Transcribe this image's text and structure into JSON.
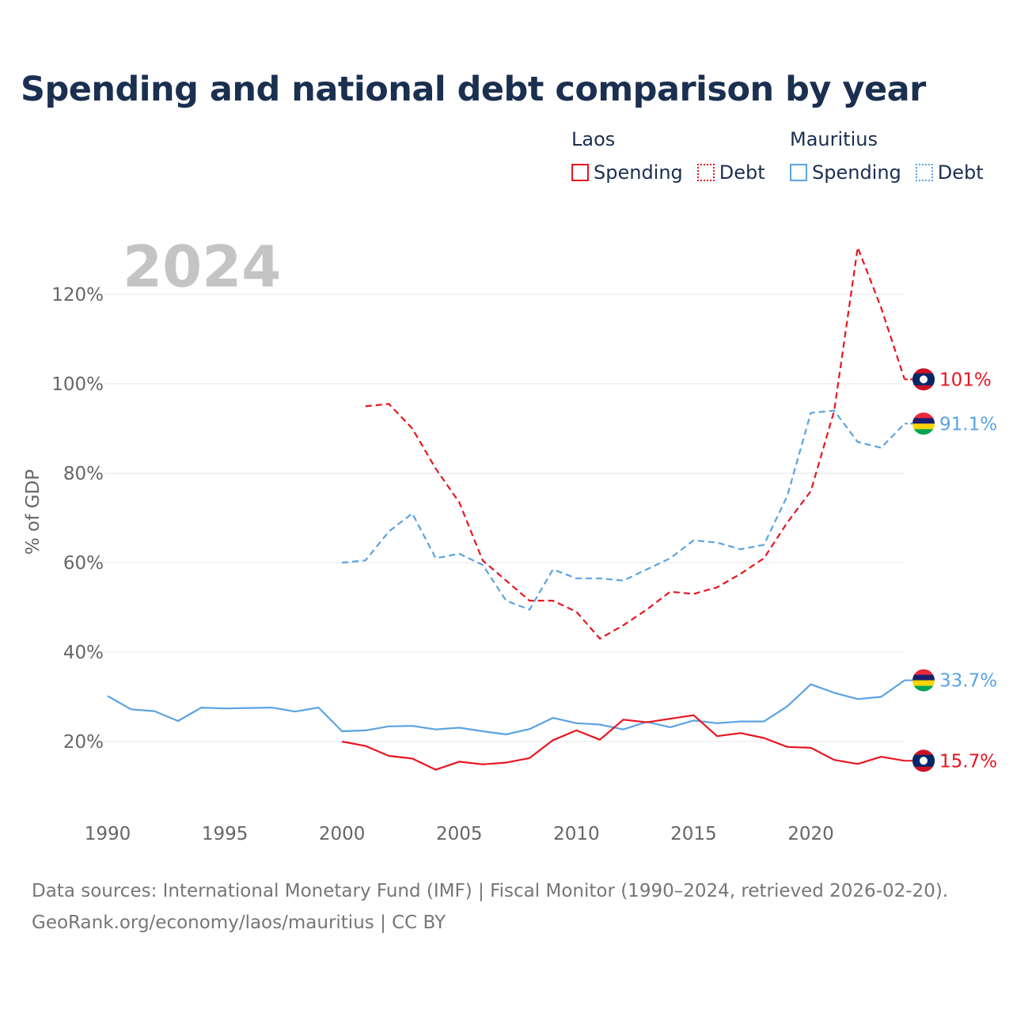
{
  "title": "Spending and national debt comparison by year",
  "legend": {
    "groups": [
      {
        "name": "Laos",
        "spending_label": "Spending",
        "debt_label": "Debt",
        "color": "#e8151f"
      },
      {
        "name": "Mauritius",
        "spending_label": "Spending",
        "debt_label": "Debt",
        "color": "#5aa3e2"
      }
    ]
  },
  "footer": {
    "line1": "Data sources: International Monetary Fund (IMF) | Fiscal Monitor (1990–2024, retrieved 2026-02-20).",
    "line2": "GeoRank.org/economy/laos/mauritius | CC BY"
  },
  "chart_data": {
    "type": "line",
    "year_label": "2024",
    "ylabel": "% of GDP",
    "xlim": [
      1990,
      2024
    ],
    "ylim": [
      0,
      130
    ],
    "x_ticks": [
      1990,
      1995,
      2000,
      2005,
      2010,
      2015,
      2020
    ],
    "y_ticks": [
      20,
      40,
      60,
      80,
      100,
      120
    ],
    "y_tick_labels": [
      "20%",
      "40%",
      "60%",
      "80%",
      "100%",
      "120%"
    ],
    "grid": true,
    "series": [
      {
        "name": "Laos Debt",
        "country": "Laos",
        "kind": "debt",
        "color": "#e8151f",
        "x": [
          2001,
          2002,
          2003,
          2004,
          2005,
          2006,
          2007,
          2008,
          2009,
          2010,
          2011,
          2012,
          2013,
          2014,
          2015,
          2016,
          2017,
          2018,
          2019,
          2020,
          2021,
          2022,
          2023,
          2024
        ],
        "values": [
          95,
          95.5,
          90,
          81,
          73.5,
          60.5,
          56,
          51.5,
          51.5,
          49,
          43,
          46,
          49.5,
          53.5,
          53,
          54.5,
          57.5,
          61,
          69,
          76,
          94,
          130.5,
          117,
          101
        ],
        "end_label": "101%"
      },
      {
        "name": "Mauritius Debt",
        "country": "Mauritius",
        "kind": "debt",
        "color": "#5aa3e2",
        "x": [
          2000,
          2001,
          2002,
          2003,
          2004,
          2005,
          2006,
          2007,
          2008,
          2009,
          2010,
          2011,
          2012,
          2013,
          2014,
          2015,
          2016,
          2017,
          2018,
          2019,
          2020,
          2021,
          2022,
          2023,
          2024
        ],
        "values": [
          60,
          60.5,
          67,
          71,
          61,
          62,
          59.5,
          51.5,
          49.5,
          58.5,
          56.5,
          56.5,
          56,
          58.5,
          61,
          65,
          64.5,
          63,
          64,
          75,
          93.5,
          94,
          87,
          85.7,
          91.1
        ],
        "end_label": "91.1%"
      },
      {
        "name": "Mauritius Spending",
        "country": "Mauritius",
        "kind": "spending",
        "color": "#5aa3e2",
        "x": [
          1990,
          1991,
          1992,
          1993,
          1994,
          1995,
          1996,
          1997,
          1998,
          1999,
          2000,
          2001,
          2002,
          2003,
          2004,
          2005,
          2006,
          2007,
          2008,
          2009,
          2010,
          2011,
          2012,
          2013,
          2014,
          2015,
          2016,
          2017,
          2018,
          2019,
          2020,
          2021,
          2022,
          2023,
          2024
        ],
        "values": [
          30.2,
          27.2,
          26.8,
          24.6,
          27.6,
          27.4,
          27.5,
          27.6,
          26.7,
          27.6,
          22.3,
          22.5,
          23.4,
          23.5,
          22.7,
          23.1,
          22.3,
          21.6,
          22.8,
          25.3,
          24.1,
          23.8,
          22.7,
          24.4,
          23.2,
          24.7,
          24.1,
          24.5,
          24.5,
          27.9,
          32.8,
          30.9,
          29.5,
          30,
          33.7
        ],
        "end_label": "33.7%"
      },
      {
        "name": "Laos Spending",
        "country": "Laos",
        "kind": "spending",
        "color": "#e8151f",
        "x": [
          2000,
          2001,
          2002,
          2003,
          2004,
          2005,
          2006,
          2007,
          2008,
          2009,
          2010,
          2011,
          2012,
          2013,
          2014,
          2015,
          2016,
          2017,
          2018,
          2019,
          2020,
          2021,
          2022,
          2023,
          2024
        ],
        "values": [
          20,
          19,
          16.8,
          16.2,
          13.7,
          15.5,
          14.9,
          15.3,
          16.3,
          20.3,
          22.5,
          20.4,
          24.9,
          24.3,
          25.1,
          25.9,
          21.2,
          21.9,
          20.8,
          18.8,
          18.6,
          15.9,
          15,
          16.6,
          15.7
        ],
        "end_label": "15.7%"
      }
    ]
  }
}
